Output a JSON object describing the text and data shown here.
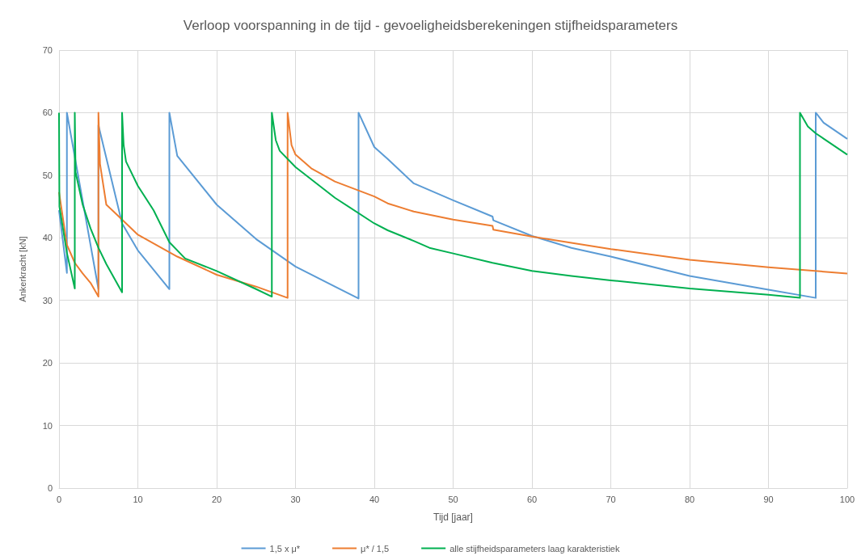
{
  "chart_data": {
    "type": "line",
    "title": "Verloop voorspanning in de tijd - gevoeligheidsberekeningen stijfheidsparameters",
    "xlabel": "Tijd [jaar]",
    "ylabel": "Ankerkracht [kN]",
    "xlim": [
      0,
      100
    ],
    "xticks": [
      0,
      10,
      20,
      30,
      40,
      50,
      60,
      70,
      80,
      90,
      100
    ],
    "ylim": [
      0,
      70
    ],
    "yticks": [
      0,
      10,
      20,
      30,
      40,
      50,
      60,
      70
    ],
    "grid": true,
    "legend": "bottom",
    "marker": "none",
    "line_style": "solid",
    "series": [
      {
        "name": "1,5 x μ*",
        "color": "#5b9bd5",
        "x": [
          0,
          1,
          1,
          5,
          5,
          8,
          10,
          14,
          14,
          15,
          20,
          25,
          30,
          35,
          38,
          38,
          40,
          41.7,
          45,
          50,
          55,
          55.1,
          60,
          65,
          70,
          80,
          90,
          96,
          96,
          97,
          100
        ],
        "values": [
          44.4,
          34.4,
          60,
          31.8,
          58,
          42.3,
          38,
          31.8,
          60,
          53.1,
          45.3,
          39.8,
          35.4,
          32.2,
          30.3,
          60,
          54.5,
          52.6,
          48.7,
          46,
          43.4,
          42.8,
          40.3,
          38.4,
          37,
          33.9,
          31.7,
          30.4,
          60,
          58.4,
          55.8
        ]
      },
      {
        "name": "μ* / 1,5",
        "color": "#ed7d31",
        "x": [
          0,
          1,
          2,
          3,
          4,
          5,
          5,
          5.2,
          6,
          8,
          10,
          15,
          20,
          25,
          29,
          29,
          29.5,
          30,
          32,
          35,
          40,
          41.7,
          45,
          50,
          55,
          55.1,
          60,
          70,
          80,
          90,
          100
        ],
        "values": [
          47.3,
          38.9,
          36,
          34.3,
          32.8,
          30.6,
          60,
          51.8,
          45.3,
          42.9,
          40.5,
          37,
          34.1,
          32.2,
          30.4,
          60,
          54.8,
          53.3,
          51.1,
          49,
          46.6,
          45.5,
          44.2,
          42.9,
          41.9,
          41.3,
          40.2,
          38.2,
          36.5,
          35.3,
          34.3
        ]
      },
      {
        "name": "alle stijfheidsparameters laag karakteristiek",
        "color": "#00b050",
        "x": [
          0,
          0.05,
          1,
          2,
          2,
          2.1,
          3,
          4,
          5,
          6,
          8,
          8,
          8.2,
          8.5,
          10,
          12,
          14,
          16,
          20,
          25,
          27,
          27,
          27.5,
          28,
          30,
          35,
          40,
          41.7,
          45,
          47,
          50,
          55,
          60,
          65,
          70,
          80,
          90,
          94,
          94,
          95,
          96,
          100
        ],
        "values": [
          60,
          45,
          37.6,
          31.9,
          60,
          50.5,
          45.3,
          41.5,
          38.4,
          35.8,
          31.3,
          60,
          54.8,
          52.2,
          48.3,
          44.4,
          39.3,
          36.7,
          34.7,
          31.8,
          30.6,
          60,
          55.6,
          53.9,
          51.3,
          46.4,
          42.3,
          41.2,
          39.5,
          38.4,
          37.5,
          36,
          34.7,
          33.9,
          33.2,
          31.9,
          30.9,
          30.4,
          60,
          57.8,
          56.7,
          53.3
        ]
      }
    ]
  }
}
